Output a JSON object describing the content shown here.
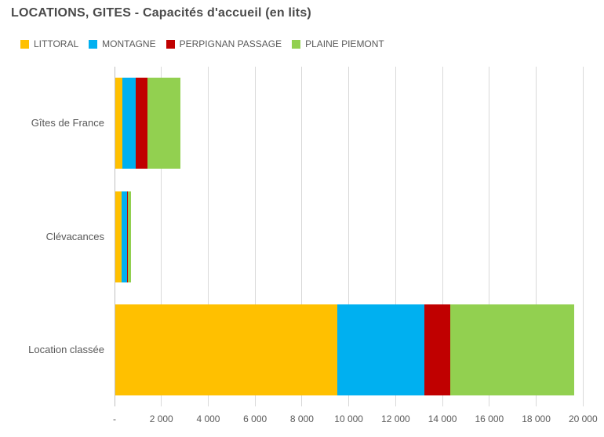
{
  "title": "LOCATIONS, GITES - Capacités d'accueil (en lits)",
  "ui_colors": {
    "background": "#FFFFFF",
    "title_text": "#4A4A4A",
    "label_text": "#595959",
    "gridline": "#D9D9D9",
    "axis_line": "#BFBFBF"
  },
  "chart_data": {
    "type": "bar",
    "orientation": "horizontal",
    "stacked": true,
    "title": "LOCATIONS, GITES - Capacités d'accueil (en lits)",
    "categories": [
      "Gîtes de France",
      "Clévacances",
      "Location classée"
    ],
    "series": [
      {
        "name": "LITTORAL",
        "color": "#FFC000",
        "values": [
          330,
          290,
          9500
        ]
      },
      {
        "name": "MONTAGNE",
        "color": "#00B0F0",
        "values": [
          570,
          215,
          3700
        ]
      },
      {
        "name": "PERPIGNAN PASSAGE",
        "color": "#C00000",
        "values": [
          500,
          50,
          1100
        ]
      },
      {
        "name": "PLAINE PIEMONT",
        "color": "#92D050",
        "values": [
          1410,
          140,
          5300
        ]
      }
    ],
    "category_totals": [
      2810,
      695,
      19600
    ],
    "xlim": [
      0,
      20000
    ],
    "xticks": [
      0,
      2000,
      4000,
      6000,
      8000,
      10000,
      12000,
      14000,
      16000,
      18000,
      20000
    ],
    "xtick_labels": [
      "-",
      "2 000",
      "4 000",
      "6 000",
      "8 000",
      "10 000",
      "12 000",
      "14 000",
      "16 000",
      "18 000",
      "20 000"
    ],
    "xlabel": "",
    "ylabel": "",
    "grid": true,
    "legend_position": "top"
  }
}
